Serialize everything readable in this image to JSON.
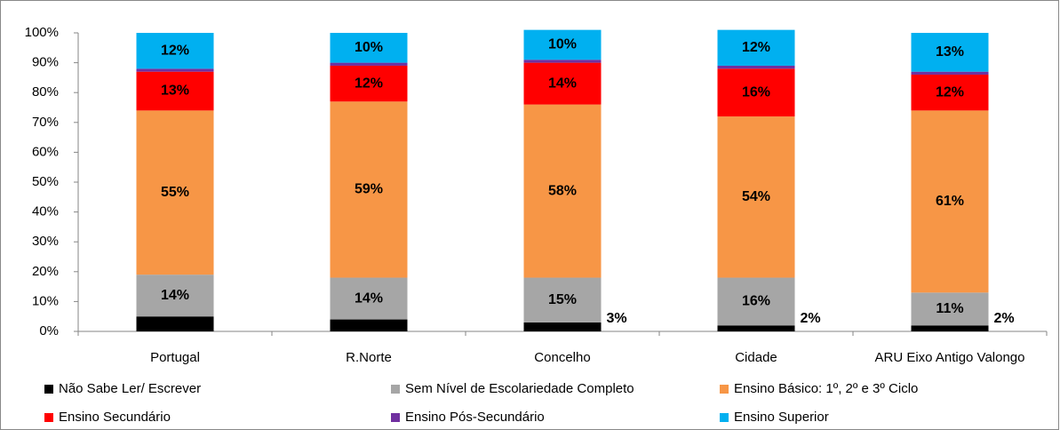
{
  "chart_data": {
    "type": "stacked_bar",
    "categories": [
      "Portugal",
      "R.Norte",
      "Concelho",
      "Cidade",
      "ARU Eixo Antigo Valongo"
    ],
    "series": [
      {
        "name": "Não Sabe Ler/ Escrever",
        "color": "#000000",
        "values": [
          5,
          4,
          3,
          2,
          2
        ],
        "value_labels": [
          null,
          null,
          "3%",
          "2%",
          "2%"
        ]
      },
      {
        "name": "Sem Nível de Escolariedade Completo",
        "color": "#a6a6a6",
        "values": [
          14,
          14,
          15,
          16,
          11
        ],
        "value_labels": [
          "14%",
          "14%",
          "15%",
          "16%",
          "11%"
        ]
      },
      {
        "name": "Ensino Básico: 1º, 2º e 3º Ciclo",
        "color": "#f79646",
        "values": [
          55,
          59,
          58,
          54,
          61
        ],
        "value_labels": [
          "55%",
          "59%",
          "58%",
          "54%",
          "61%"
        ]
      },
      {
        "name": "Ensino Secundário",
        "color": "#ff0000",
        "values": [
          13,
          12,
          14,
          16,
          12
        ],
        "value_labels": [
          "13%",
          "12%",
          "14%",
          "16%",
          "12%"
        ]
      },
      {
        "name": "Ensino Pós-Secundário",
        "color": "#7030a0",
        "values": [
          1,
          1,
          1,
          1,
          1
        ]
      },
      {
        "name": "Ensino Superior",
        "color": "#00b0f0",
        "values": [
          12,
          10,
          10,
          12,
          13
        ],
        "value_labels": [
          "12%",
          "10%",
          "10%",
          "12%",
          "13%"
        ]
      }
    ],
    "ylim": [
      0,
      100
    ],
    "yticks": [
      {
        "value": 0,
        "label": "0%"
      },
      {
        "value": 10,
        "label": "10%"
      },
      {
        "value": 20,
        "label": "20%"
      },
      {
        "value": 30,
        "label": "30%"
      },
      {
        "value": 40,
        "label": "40%"
      },
      {
        "value": 50,
        "label": "50%"
      },
      {
        "value": 60,
        "label": "60%"
      },
      {
        "value": 70,
        "label": "70%"
      },
      {
        "value": 80,
        "label": "80%"
      },
      {
        "value": 90,
        "label": "90%"
      },
      {
        "value": 100,
        "label": "100%"
      }
    ],
    "grid": false,
    "legend": "bottom"
  }
}
